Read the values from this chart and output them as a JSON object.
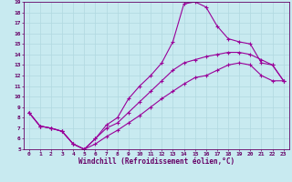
{
  "xlabel": "Windchill (Refroidissement éolien,°C)",
  "bg_color": "#c8eaf0",
  "grid_color": "#b0d8e0",
  "line_color": "#990099",
  "spine_color": "#660066",
  "xlim": [
    -0.5,
    23.5
  ],
  "ylim": [
    5,
    19
  ],
  "xticks": [
    0,
    1,
    2,
    3,
    4,
    5,
    6,
    7,
    8,
    9,
    10,
    11,
    12,
    13,
    14,
    15,
    16,
    17,
    18,
    19,
    20,
    21,
    22,
    23
  ],
  "yticks": [
    5,
    6,
    7,
    8,
    9,
    10,
    11,
    12,
    13,
    14,
    15,
    16,
    17,
    18,
    19
  ],
  "line1_x": [
    0,
    1,
    2,
    3,
    4,
    5,
    6,
    7,
    8,
    9,
    10,
    11,
    12,
    13,
    14,
    15,
    16,
    17,
    18,
    19,
    20,
    21,
    22,
    23
  ],
  "line1_y": [
    8.5,
    7.2,
    7.0,
    6.7,
    5.5,
    5.0,
    6.0,
    7.3,
    8.0,
    9.8,
    11.0,
    12.0,
    13.2,
    15.2,
    18.8,
    19.0,
    18.5,
    16.7,
    15.5,
    15.2,
    15.0,
    13.2,
    13.0,
    11.5
  ],
  "line2_x": [
    0,
    1,
    2,
    3,
    4,
    5,
    6,
    7,
    8,
    9,
    10,
    11,
    12,
    13,
    14,
    15,
    16,
    17,
    18,
    19,
    20,
    21,
    22,
    23
  ],
  "line2_y": [
    8.5,
    7.2,
    7.0,
    6.7,
    5.5,
    5.0,
    6.0,
    7.0,
    7.5,
    8.5,
    9.5,
    10.5,
    11.5,
    12.5,
    13.2,
    13.5,
    13.8,
    14.0,
    14.2,
    14.2,
    14.0,
    13.5,
    13.0,
    11.5
  ],
  "line3_x": [
    0,
    1,
    2,
    3,
    4,
    5,
    6,
    7,
    8,
    9,
    10,
    11,
    12,
    13,
    14,
    15,
    16,
    17,
    18,
    19,
    20,
    21,
    22,
    23
  ],
  "line3_y": [
    8.5,
    7.2,
    7.0,
    6.7,
    5.5,
    5.0,
    5.5,
    6.2,
    6.8,
    7.5,
    8.2,
    9.0,
    9.8,
    10.5,
    11.2,
    11.8,
    12.0,
    12.5,
    13.0,
    13.2,
    13.0,
    12.0,
    11.5,
    11.5
  ],
  "tick_fontsize": 4.5,
  "xlabel_fontsize": 5.5,
  "marker_size": 3.5,
  "linewidth": 0.8
}
